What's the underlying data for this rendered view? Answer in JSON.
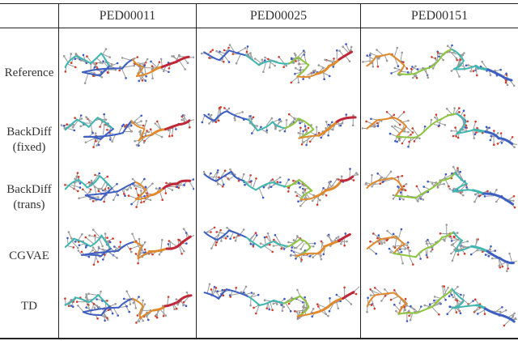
{
  "columns": [
    "PED00011",
    "PED00025",
    "PED00151"
  ],
  "rows": [
    {
      "label": "Reference"
    },
    {
      "label": "BackDiff\n(fixed)"
    },
    {
      "label": "BackDiff\n(trans)"
    },
    {
      "label": "CGVAE"
    },
    {
      "label": "TD"
    }
  ],
  "colors": {
    "backbone_red": "#c0283a",
    "backbone_blue": "#3d5fc4",
    "backbone_cyan": "#3fb6b0",
    "backbone_orange": "#e08a2c",
    "backbone_green": "#8cc63f",
    "atom_grey": "#9a9a9a",
    "atom_red": "#d23b2a",
    "atom_blue": "#3b58c9"
  }
}
